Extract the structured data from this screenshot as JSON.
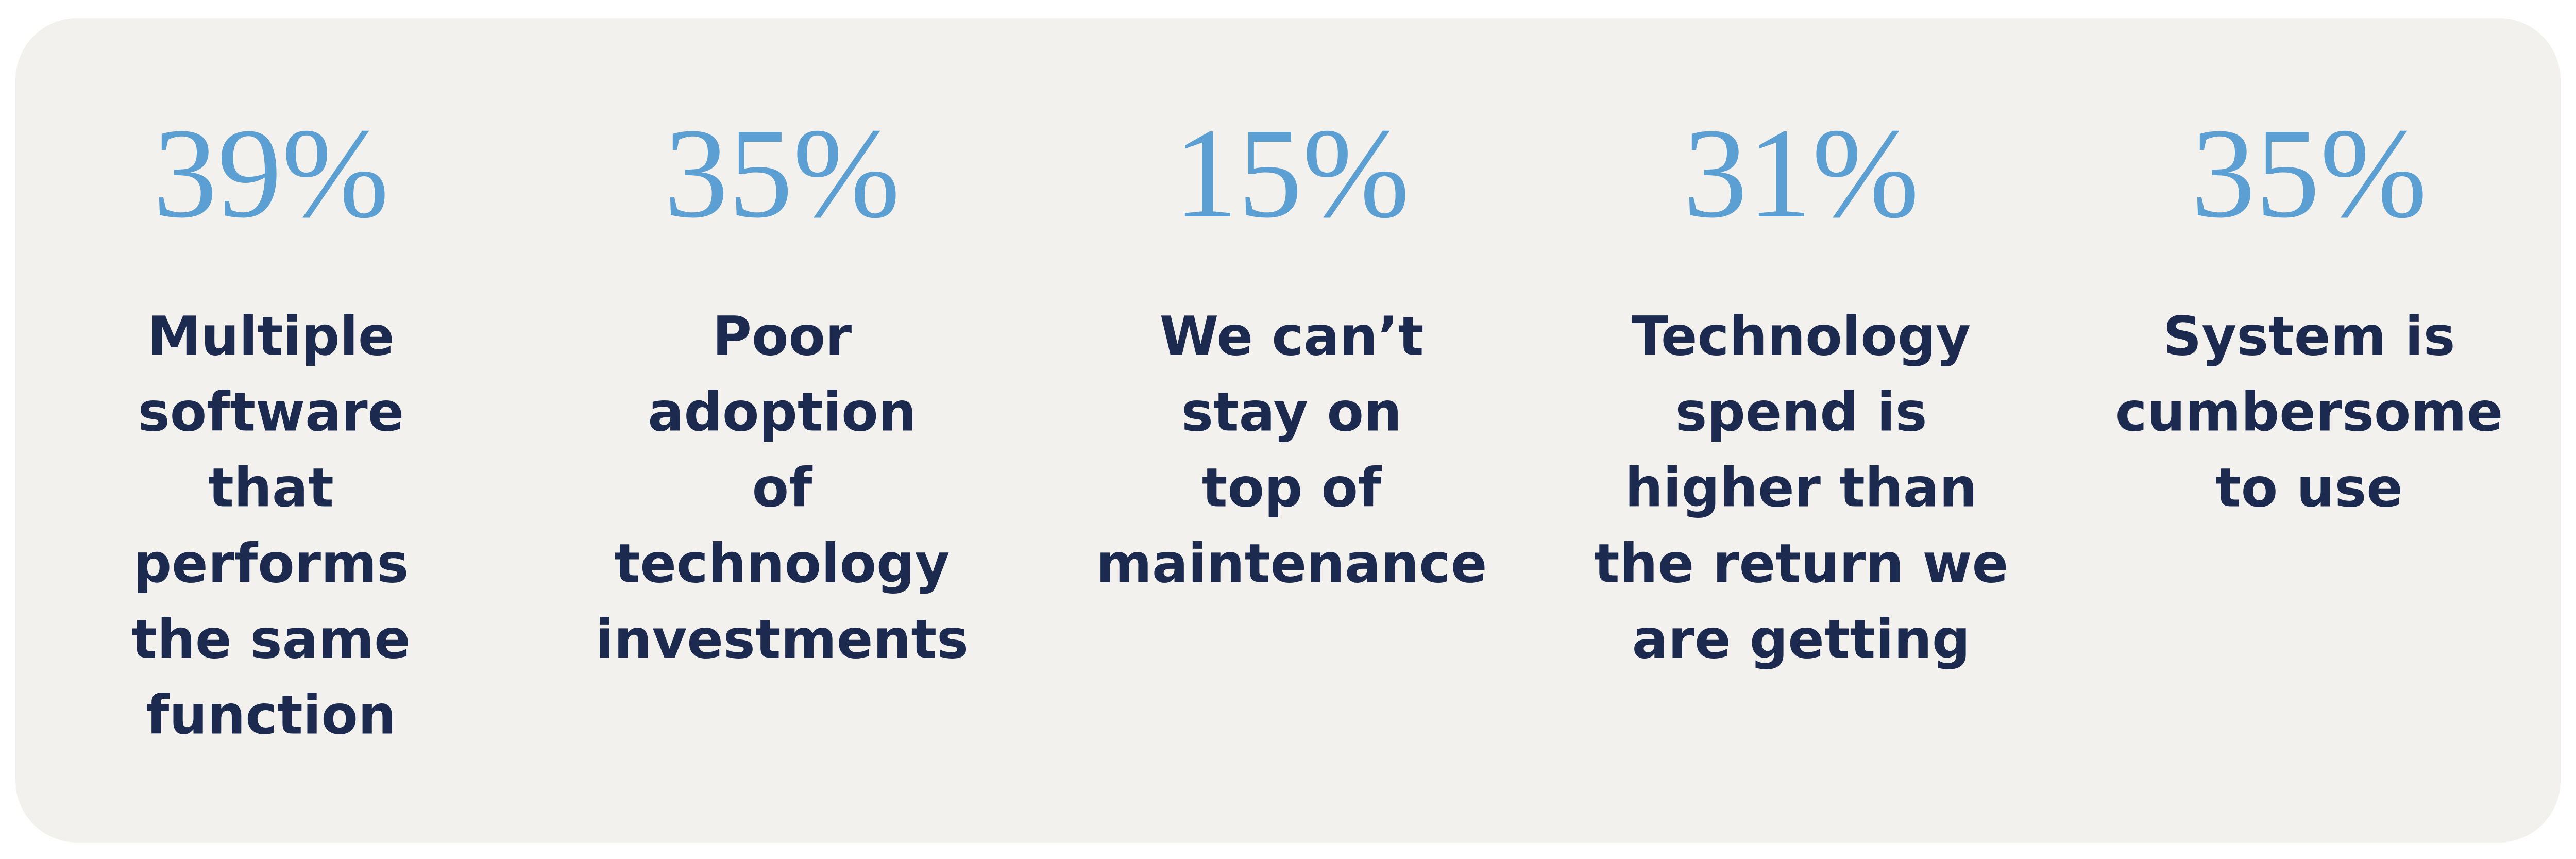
{
  "stats": [
    {
      "value": "39%",
      "label": [
        "Multiple",
        "software",
        "that",
        "performs",
        "the same",
        "function"
      ]
    },
    {
      "value": "35%",
      "label": [
        "Poor",
        "adoption",
        "of",
        "technology",
        "investments"
      ]
    },
    {
      "value": "15%",
      "label": [
        "We can’t",
        "stay on",
        "top of",
        "maintenance"
      ]
    },
    {
      "value": "31%",
      "label": [
        "Technology",
        "spend is",
        "higher than",
        "the return we",
        "are getting"
      ]
    },
    {
      "value": "35%",
      "label": [
        "System is",
        "cumbersome",
        "to use"
      ]
    }
  ]
}
